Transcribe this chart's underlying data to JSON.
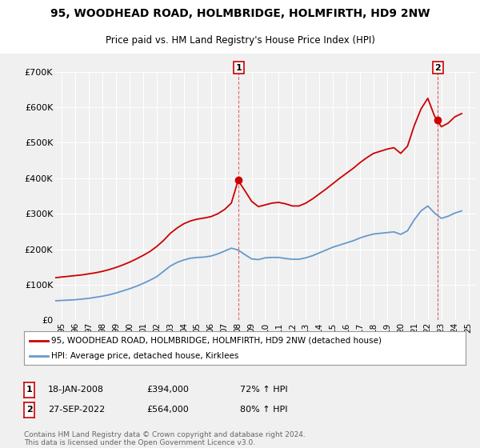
{
  "title": "95, WOODHEAD ROAD, HOLMBRIDGE, HOLMFIRTH, HD9 2NW",
  "subtitle": "Price paid vs. HM Land Registry's House Price Index (HPI)",
  "legend_line1": "95, WOODHEAD ROAD, HOLMBRIDGE, HOLMFIRTH, HD9 2NW (detached house)",
  "legend_line2": "HPI: Average price, detached house, Kirklees",
  "footnote": "Contains HM Land Registry data © Crown copyright and database right 2024.\nThis data is licensed under the Open Government Licence v3.0.",
  "annotation1": {
    "label": "1",
    "date": "18-JAN-2008",
    "price": "£394,000",
    "hpi": "72% ↑ HPI",
    "x": 2008.05
  },
  "annotation2": {
    "label": "2",
    "date": "27-SEP-2022",
    "price": "£564,000",
    "hpi": "80% ↑ HPI",
    "x": 2022.75
  },
  "red_color": "#cc0000",
  "blue_color": "#6699cc",
  "background_color": "#f0f0f0",
  "plot_bg_color": "#f0f0f0",
  "grid_color": "#ffffff",
  "ylim": [
    0,
    700000
  ],
  "xlim_start": 1994.5,
  "xlim_end": 2025.5,
  "yticks": [
    0,
    100000,
    200000,
    300000,
    400000,
    500000,
    600000,
    700000
  ],
  "ytick_labels": [
    "£0",
    "£100K",
    "£200K",
    "£300K",
    "£400K",
    "£500K",
    "£600K",
    "£700K"
  ],
  "xticks": [
    1995,
    1996,
    1997,
    1998,
    1999,
    2000,
    2001,
    2002,
    2003,
    2004,
    2005,
    2006,
    2007,
    2008,
    2009,
    2010,
    2011,
    2012,
    2013,
    2014,
    2015,
    2016,
    2017,
    2018,
    2019,
    2020,
    2021,
    2022,
    2023,
    2024,
    2025
  ],
  "hpi_x": [
    1994.5,
    1995.0,
    1995.5,
    1996.0,
    1996.5,
    1997.0,
    1997.5,
    1998.0,
    1998.5,
    1999.0,
    1999.5,
    2000.0,
    2000.5,
    2001.0,
    2001.5,
    2002.0,
    2002.5,
    2003.0,
    2003.5,
    2004.0,
    2004.5,
    2005.0,
    2005.5,
    2006.0,
    2006.5,
    2007.0,
    2007.5,
    2008.0,
    2008.5,
    2009.0,
    2009.5,
    2010.0,
    2010.5,
    2011.0,
    2011.5,
    2012.0,
    2012.5,
    2013.0,
    2013.5,
    2014.0,
    2014.5,
    2015.0,
    2015.5,
    2016.0,
    2016.5,
    2017.0,
    2017.5,
    2018.0,
    2018.5,
    2019.0,
    2019.5,
    2020.0,
    2020.5,
    2021.0,
    2021.5,
    2022.0,
    2022.5,
    2023.0,
    2023.5,
    2024.0,
    2024.5
  ],
  "hpi_y": [
    55000,
    56000,
    57000,
    58000,
    60000,
    62000,
    65000,
    68000,
    72000,
    77000,
    83000,
    89000,
    96000,
    104000,
    113000,
    123000,
    138000,
    153000,
    163000,
    170000,
    175000,
    177000,
    178000,
    181000,
    187000,
    195000,
    203000,
    198000,
    185000,
    173000,
    171000,
    176000,
    177000,
    177000,
    174000,
    172000,
    172000,
    176000,
    182000,
    190000,
    198000,
    206000,
    212000,
    218000,
    224000,
    232000,
    238000,
    243000,
    245000,
    247000,
    249000,
    242000,
    252000,
    283000,
    308000,
    322000,
    302000,
    287000,
    293000,
    302000,
    308000
  ],
  "red_x": [
    1994.5,
    1995.0,
    1995.5,
    1996.0,
    1996.5,
    1997.0,
    1997.5,
    1998.0,
    1998.5,
    1999.0,
    1999.5,
    2000.0,
    2000.5,
    2001.0,
    2001.5,
    2002.0,
    2002.5,
    2003.0,
    2003.5,
    2004.0,
    2004.5,
    2005.0,
    2005.5,
    2006.0,
    2006.5,
    2007.0,
    2007.5,
    2008.0,
    2008.5,
    2009.0,
    2009.5,
    2010.0,
    2010.5,
    2011.0,
    2011.5,
    2012.0,
    2012.5,
    2013.0,
    2013.5,
    2014.0,
    2014.5,
    2015.0,
    2015.5,
    2016.0,
    2016.5,
    2017.0,
    2017.5,
    2018.0,
    2018.5,
    2019.0,
    2019.5,
    2020.0,
    2020.5,
    2021.0,
    2021.5,
    2022.0,
    2022.5,
    2023.0,
    2023.5,
    2024.0,
    2024.5
  ],
  "red_y": [
    120000,
    122000,
    124000,
    126000,
    128000,
    131000,
    134000,
    138000,
    143000,
    149000,
    156000,
    164000,
    173000,
    183000,
    194000,
    208000,
    225000,
    245000,
    260000,
    272000,
    280000,
    285000,
    288000,
    292000,
    300000,
    312000,
    330000,
    394000,
    365000,
    335000,
    320000,
    325000,
    330000,
    332000,
    328000,
    322000,
    322000,
    330000,
    342000,
    356000,
    370000,
    385000,
    400000,
    414000,
    428000,
    444000,
    458000,
    470000,
    476000,
    482000,
    486000,
    470000,
    490000,
    548000,
    595000,
    625000,
    575000,
    545000,
    555000,
    573000,
    582000
  ],
  "dot1_x": 2008.05,
  "dot1_y": 394000,
  "dot2_x": 2022.75,
  "dot2_y": 564000
}
